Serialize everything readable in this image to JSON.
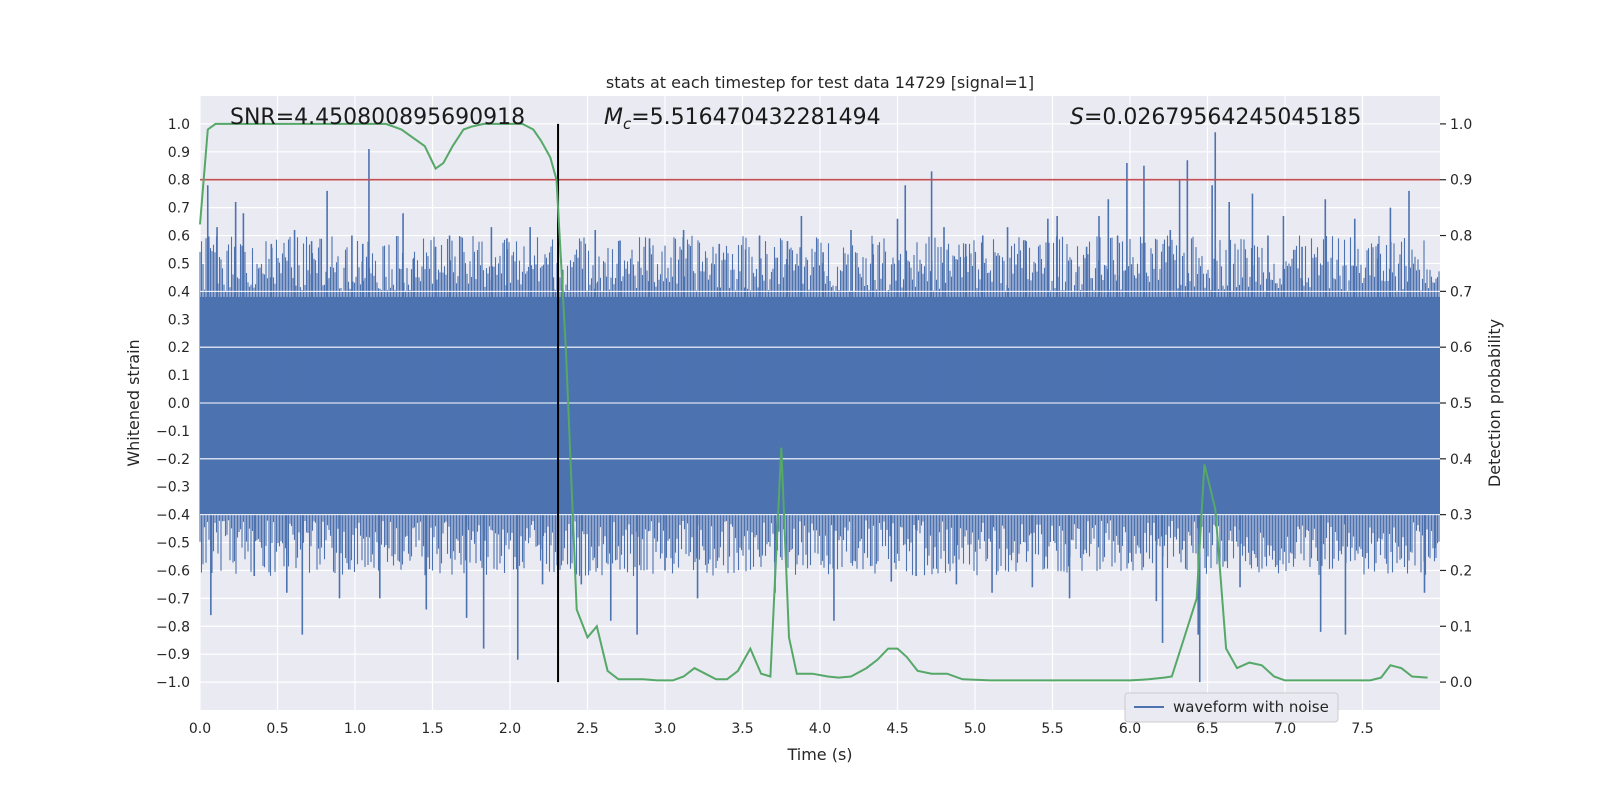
{
  "chart_data": {
    "type": "line",
    "title": "stats at each timestep for test data 14729 [signal=1]",
    "xlabel": "Time (s)",
    "ylabel": "Whitened strain",
    "y2label": "Detection probability",
    "xlim": [
      0.0,
      8.0
    ],
    "ylim": [
      -1.1,
      1.1
    ],
    "y2lim": [
      -0.05,
      1.05
    ],
    "xticks": [
      "0.0",
      "0.5",
      "1.0",
      "1.5",
      "2.0",
      "2.5",
      "3.0",
      "3.5",
      "4.0",
      "4.5",
      "5.0",
      "5.5",
      "6.0",
      "6.5",
      "7.0",
      "7.5"
    ],
    "yticks": [
      "1.0",
      "0.9",
      "0.8",
      "0.7",
      "0.6",
      "0.5",
      "0.4",
      "0.3",
      "0.2",
      "0.1",
      "0.0",
      "-0.1",
      "-0.2",
      "-0.3",
      "-0.4",
      "-0.5",
      "-0.6",
      "-0.7",
      "-0.8",
      "-0.9",
      "-1.0"
    ],
    "y2ticks": [
      "1.0",
      "0.9",
      "0.8",
      "0.7",
      "0.6",
      "0.5",
      "0.4",
      "0.3",
      "0.2",
      "0.1",
      "0.0"
    ],
    "grid": true,
    "legend_position": "bottom-right",
    "annotations": {
      "snr": "SNR=4.450800895690918",
      "mc_symbol": "M",
      "mc_sub": "c",
      "mc_value": "=5.516470432281494",
      "s_symbol": "S",
      "s_value": "=0.02679564245045185"
    },
    "vertical_marker_x": 2.31,
    "threshold_probability": 0.9,
    "series": [
      {
        "name": "waveform with noise",
        "color": "#4c72b0",
        "noise_band_up": 0.38,
        "noise_band_down": -0.4,
        "peaks": [
          [
            0.05,
            0.78
          ],
          [
            0.07,
            -0.76
          ],
          [
            0.11,
            0.63
          ],
          [
            0.23,
            0.72
          ],
          [
            0.28,
            0.68
          ],
          [
            0.35,
            -0.62
          ],
          [
            0.46,
            0.57
          ],
          [
            0.56,
            -0.68
          ],
          [
            0.61,
            0.62
          ],
          [
            0.66,
            -0.83
          ],
          [
            0.72,
            0.58
          ],
          [
            0.82,
            0.76
          ],
          [
            0.9,
            -0.7
          ],
          [
            0.98,
            0.6
          ],
          [
            1.05,
            0.57
          ],
          [
            1.09,
            0.91
          ],
          [
            1.16,
            -0.7
          ],
          [
            1.31,
            0.68
          ],
          [
            1.38,
            0.52
          ],
          [
            1.46,
            -0.74
          ],
          [
            1.52,
            0.56
          ],
          [
            1.61,
            0.6
          ],
          [
            1.72,
            -0.77
          ],
          [
            1.83,
            -0.88
          ],
          [
            1.88,
            0.63
          ],
          [
            1.98,
            0.59
          ],
          [
            2.05,
            -0.92
          ],
          [
            2.13,
            0.63
          ],
          [
            2.21,
            -0.65
          ],
          [
            2.28,
            0.45
          ],
          [
            2.46,
            -0.65
          ],
          [
            2.55,
            0.62
          ],
          [
            2.65,
            -0.78
          ],
          [
            2.71,
            0.58
          ],
          [
            2.82,
            -0.83
          ],
          [
            2.9,
            0.59
          ],
          [
            3.0,
            -0.6
          ],
          [
            3.12,
            0.62
          ],
          [
            3.21,
            -0.7
          ],
          [
            3.35,
            0.57
          ],
          [
            3.52,
            0.55
          ],
          [
            3.61,
            0.6
          ],
          [
            3.71,
            -0.68
          ],
          [
            3.79,
            0.58
          ],
          [
            3.88,
            0.67
          ],
          [
            4.02,
            0.54
          ],
          [
            4.09,
            -0.78
          ],
          [
            4.2,
            0.62
          ],
          [
            4.34,
            0.57
          ],
          [
            4.46,
            -0.64
          ],
          [
            4.5,
            0.66
          ],
          [
            4.55,
            0.78
          ],
          [
            4.62,
            -0.62
          ],
          [
            4.72,
            0.83
          ],
          [
            4.8,
            0.63
          ],
          [
            4.88,
            -0.65
          ],
          [
            4.94,
            0.57
          ],
          [
            5.05,
            0.6
          ],
          [
            5.11,
            -0.68
          ],
          [
            5.21,
            0.63
          ],
          [
            5.33,
            0.58
          ],
          [
            5.37,
            -0.66
          ],
          [
            5.47,
            0.66
          ],
          [
            5.53,
            0.67
          ],
          [
            5.61,
            -0.7
          ],
          [
            5.72,
            0.56
          ],
          [
            5.8,
            0.67
          ],
          [
            5.86,
            0.73
          ],
          [
            5.92,
            0.6
          ],
          [
            5.98,
            0.86
          ],
          [
            6.09,
            0.85
          ],
          [
            6.17,
            -0.71
          ],
          [
            6.21,
            -0.86
          ],
          [
            6.26,
            0.62
          ],
          [
            6.32,
            0.8
          ],
          [
            6.37,
            0.87
          ],
          [
            6.44,
            -0.83
          ],
          [
            6.45,
            -1.0
          ],
          [
            6.53,
            0.78
          ],
          [
            6.55,
            0.97
          ],
          [
            6.64,
            0.72
          ],
          [
            6.71,
            -0.66
          ],
          [
            6.79,
            0.75
          ],
          [
            6.89,
            0.6
          ],
          [
            6.99,
            0.67
          ],
          [
            7.11,
            0.56
          ],
          [
            7.23,
            -0.82
          ],
          [
            7.26,
            0.73
          ],
          [
            7.39,
            -0.83
          ],
          [
            7.45,
            0.66
          ],
          [
            7.6,
            0.57
          ],
          [
            7.68,
            0.7
          ],
          [
            7.8,
            0.76
          ],
          [
            7.9,
            -0.68
          ],
          [
            7.97,
            -0.52
          ]
        ]
      },
      {
        "name": "detection probability",
        "color": "#55a868",
        "axis": "right",
        "x": [
          0.0,
          0.05,
          0.1,
          0.2,
          0.4,
          0.6,
          0.8,
          1.0,
          1.2,
          1.3,
          1.45,
          1.52,
          1.57,
          1.63,
          1.7,
          1.75,
          1.83,
          1.9,
          2.0,
          2.08,
          2.15,
          2.2,
          2.26,
          2.3,
          2.36,
          2.43,
          2.5,
          2.56,
          2.63,
          2.7,
          2.77,
          2.86,
          2.95,
          3.05,
          3.12,
          3.19,
          3.26,
          3.33,
          3.4,
          3.47,
          3.55,
          3.62,
          3.68,
          3.75,
          3.8,
          3.85,
          3.95,
          4.05,
          4.12,
          4.2,
          4.3,
          4.37,
          4.44,
          4.5,
          4.56,
          4.63,
          4.72,
          4.82,
          4.92,
          5.1,
          5.5,
          5.8,
          6.0,
          6.12,
          6.22,
          6.27,
          6.35,
          6.43,
          6.48,
          6.55,
          6.62,
          6.69,
          6.77,
          6.85,
          6.93,
          7.0,
          7.2,
          7.4,
          7.55,
          7.62,
          7.68,
          7.75,
          7.82,
          7.92
        ],
        "y": [
          0.82,
          0.99,
          1.0,
          1.0,
          1.0,
          1.0,
          1.0,
          1.0,
          1.0,
          0.99,
          0.96,
          0.92,
          0.93,
          0.96,
          0.99,
          0.995,
          1.0,
          1.0,
          1.0,
          1.0,
          0.99,
          0.97,
          0.94,
          0.9,
          0.6,
          0.13,
          0.08,
          0.1,
          0.02,
          0.005,
          0.005,
          0.005,
          0.003,
          0.003,
          0.01,
          0.025,
          0.015,
          0.005,
          0.005,
          0.02,
          0.06,
          0.015,
          0.01,
          0.42,
          0.08,
          0.015,
          0.015,
          0.01,
          0.008,
          0.01,
          0.025,
          0.04,
          0.06,
          0.06,
          0.045,
          0.02,
          0.015,
          0.015,
          0.005,
          0.003,
          0.003,
          0.003,
          0.003,
          0.005,
          0.008,
          0.01,
          0.08,
          0.15,
          0.39,
          0.31,
          0.06,
          0.025,
          0.035,
          0.03,
          0.01,
          0.003,
          0.003,
          0.003,
          0.003,
          0.008,
          0.03,
          0.025,
          0.01,
          0.008
        ]
      }
    ]
  }
}
